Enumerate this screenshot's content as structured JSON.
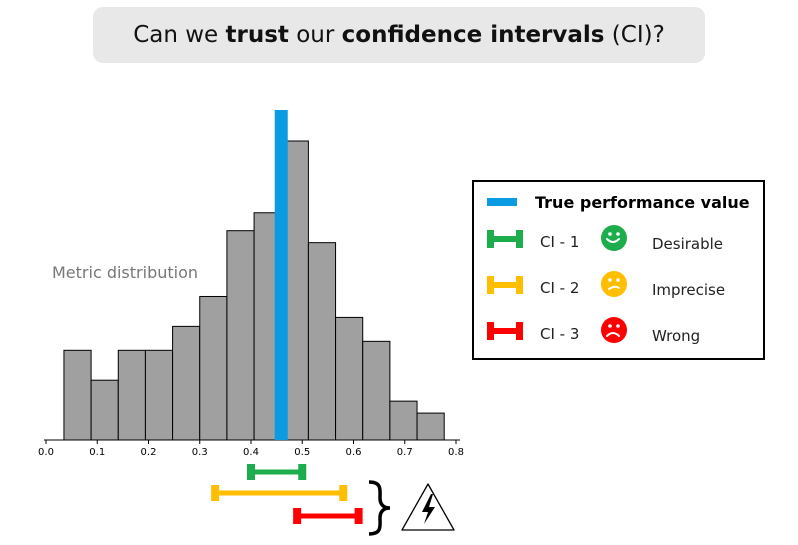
{
  "title": {
    "prefix": "Can we ",
    "bold1": "trust",
    "middle": " our ",
    "bold2": "confidence intervals",
    "suffix": " (CI)?"
  },
  "distribution_label": "Metric distribution",
  "legend": {
    "title": "True performance value",
    "items": [
      {
        "ci": "CI - 1",
        "status": "Desirable",
        "color": "#1ead4c",
        "face": "smile-icon"
      },
      {
        "ci": "CI - 2",
        "status": "Imprecise",
        "color": "#ffbe00",
        "face": "uncertain-face-icon"
      },
      {
        "ci": "CI - 3",
        "status": "Wrong",
        "color": "#ff0000",
        "face": "frown-icon"
      }
    ],
    "true_color": "#0b9be3"
  },
  "chart_data": {
    "type": "bar",
    "bin_edges": [
      0.035,
      0.088,
      0.141,
      0.194,
      0.247,
      0.3,
      0.353,
      0.406,
      0.459,
      0.512,
      0.565,
      0.618,
      0.671,
      0.724,
      0.777
    ],
    "values": [
      30,
      20,
      30,
      30,
      38,
      48,
      70,
      76,
      100,
      66,
      41,
      33,
      13,
      9
    ],
    "xlim": [
      0.0,
      0.8
    ],
    "xticks": [
      "0.0",
      "0.1",
      "0.2",
      "0.3",
      "0.4",
      "0.5",
      "0.6",
      "0.7",
      "0.8"
    ],
    "true_value": 0.459,
    "bar_color": "#a0a0a0",
    "intervals": [
      {
        "name": "CI - 1",
        "low": 0.4,
        "high": 0.5,
        "color": "#1ead4c"
      },
      {
        "name": "CI - 2",
        "low": 0.33,
        "high": 0.58,
        "color": "#ffbe00"
      },
      {
        "name": "CI - 3",
        "low": 0.49,
        "high": 0.61,
        "color": "#ff0000"
      }
    ]
  }
}
